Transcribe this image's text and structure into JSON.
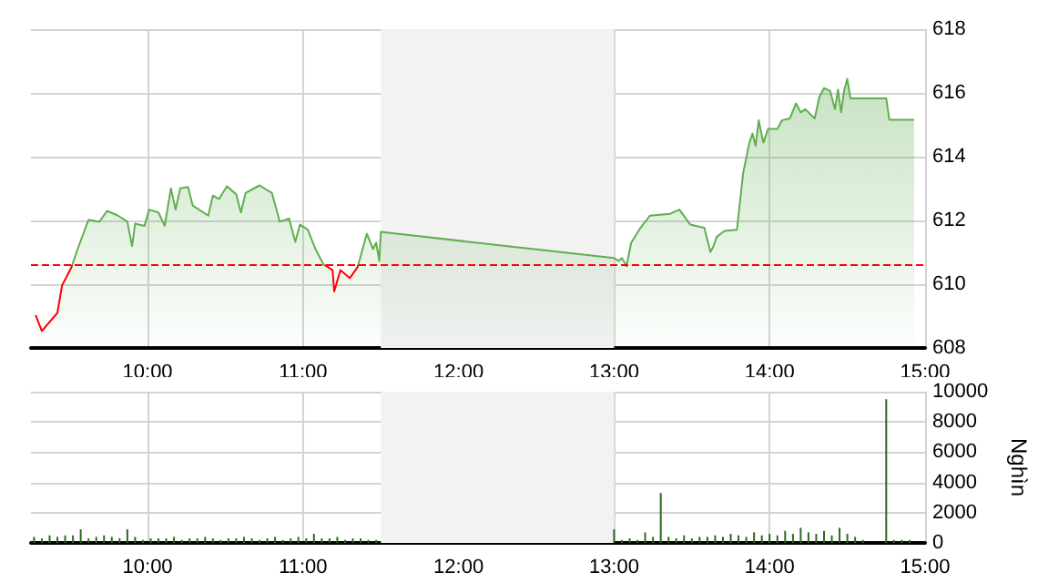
{
  "chart_data": [
    {
      "type": "area",
      "xlim": [
        9.25,
        15
      ],
      "xticks": [
        {
          "value": 10,
          "label": "10:00"
        },
        {
          "value": 11,
          "label": "11:00"
        },
        {
          "value": 12,
          "label": "12:00"
        },
        {
          "value": 13,
          "label": "13:00"
        },
        {
          "value": 14,
          "label": "14:00"
        },
        {
          "value": 15,
          "label": "15:00"
        }
      ],
      "ylim": [
        608,
        618
      ],
      "yticks": [
        608,
        610,
        612,
        614,
        616,
        618
      ],
      "grid": true,
      "marker": "none",
      "line_style": "solid",
      "x": [
        9.28,
        9.32,
        9.42,
        9.45,
        9.51,
        9.55,
        9.62,
        9.69,
        9.74,
        9.81,
        9.87,
        9.9,
        9.92,
        9.98,
        10.01,
        10.07,
        10.11,
        10.15,
        10.18,
        10.21,
        10.26,
        10.29,
        10.39,
        10.42,
        10.46,
        10.51,
        10.57,
        10.6,
        10.63,
        10.72,
        10.8,
        10.85,
        10.91,
        10.95,
        10.98,
        11.03,
        11.08,
        11.13,
        11.19,
        11.2,
        11.24,
        11.3,
        11.35,
        11.41,
        11.45,
        11.47,
        11.49,
        11.5,
        13.0,
        13.03,
        13.05,
        13.08,
        13.11,
        13.17,
        13.23,
        13.36,
        13.42,
        13.49,
        13.58,
        13.62,
        13.64,
        13.66,
        13.71,
        13.79,
        13.83,
        13.87,
        13.89,
        13.91,
        13.93,
        13.96,
        13.99,
        14.05,
        14.08,
        14.13,
        14.17,
        14.2,
        14.23,
        14.29,
        14.32,
        14.35,
        14.39,
        14.42,
        14.44,
        14.46,
        14.48,
        14.5,
        14.52,
        14.75,
        14.77,
        14.93
      ],
      "series": [
        {
          "color": "#5fae4f",
          "values": [
            609.03,
            608.53,
            609.1,
            609.96,
            610.53,
            611.1,
            612.02,
            611.96,
            612.3,
            612.15,
            611.96,
            611.2,
            611.9,
            611.83,
            612.34,
            612.25,
            611.83,
            613.01,
            612.34,
            613.01,
            613.05,
            612.47,
            612.15,
            612.78,
            612.67,
            613.07,
            612.82,
            612.25,
            612.86,
            613.1,
            612.86,
            611.96,
            612.06,
            611.33,
            611.87,
            611.71,
            611.1,
            610.63,
            610.44,
            609.77,
            610.44,
            610.19,
            610.53,
            611.58,
            611.1,
            611.3,
            610.73,
            611.64,
            610.82,
            610.73,
            610.82,
            610.57,
            611.3,
            611.77,
            612.15,
            612.21,
            612.34,
            611.87,
            611.77,
            611.01,
            611.2,
            611.49,
            611.67,
            611.71,
            613.49,
            614.44,
            614.73,
            614.34,
            615.14,
            614.44,
            614.87,
            614.87,
            615.14,
            615.2,
            615.67,
            615.39,
            615.49,
            615.2,
            615.87,
            616.15,
            616.06,
            615.49,
            616.1,
            615.39,
            616.1,
            616.44,
            615.83,
            615.83,
            615.16,
            615.16
          ]
        }
      ],
      "ref_lines": [
        {
          "axis": "y",
          "value": 610.6,
          "color": "#ff0000",
          "line_style": "dashed"
        }
      ],
      "bands": [
        {
          "axis": "x",
          "from": 11.5,
          "to": 13,
          "color": "#f2f2f2"
        }
      ]
    },
    {
      "type": "bar",
      "xlim": [
        9.25,
        15
      ],
      "xticks": [
        {
          "value": 10,
          "label": "10:00"
        },
        {
          "value": 11,
          "label": "11:00"
        },
        {
          "value": 12,
          "label": "12:00"
        },
        {
          "value": 13,
          "label": "13:00"
        },
        {
          "value": 14,
          "label": "14:00"
        },
        {
          "value": 15,
          "label": "15:00"
        }
      ],
      "ylim": [
        0,
        10000
      ],
      "yticks": [
        0,
        2000,
        4000,
        6000,
        8000,
        10000
      ],
      "y2label": "Nghìn",
      "grid": true,
      "x": [
        9.27,
        9.32,
        9.37,
        9.42,
        9.47,
        9.52,
        9.57,
        9.62,
        9.67,
        9.72,
        9.77,
        9.82,
        9.87,
        9.92,
        9.97,
        10.02,
        10.07,
        10.12,
        10.17,
        10.22,
        10.27,
        10.32,
        10.37,
        10.42,
        10.47,
        10.52,
        10.57,
        10.62,
        10.67,
        10.72,
        10.77,
        10.82,
        10.87,
        10.92,
        10.97,
        11.02,
        11.07,
        11.12,
        11.17,
        11.22,
        11.27,
        11.32,
        11.37,
        11.42,
        11.47,
        13.0,
        13.05,
        13.1,
        13.15,
        13.2,
        13.25,
        13.3,
        13.35,
        13.4,
        13.45,
        13.5,
        13.55,
        13.6,
        13.65,
        13.7,
        13.75,
        13.8,
        13.85,
        13.9,
        13.95,
        14.0,
        14.05,
        14.1,
        14.15,
        14.2,
        14.25,
        14.3,
        14.35,
        14.4,
        14.45,
        14.5,
        14.55,
        14.6,
        14.65,
        14.7,
        14.75,
        14.8,
        14.85,
        14.9
      ],
      "series": [
        {
          "color": "#2d6a1e",
          "values": [
            400,
            300,
            500,
            400,
            500,
            500,
            900,
            300,
            400,
            500,
            400,
            300,
            900,
            400,
            200,
            300,
            300,
            300,
            400,
            200,
            300,
            300,
            400,
            300,
            200,
            300,
            300,
            400,
            300,
            200,
            300,
            400,
            200,
            300,
            400,
            300,
            600,
            300,
            300,
            400,
            200,
            300,
            300,
            200,
            200,
            900,
            200,
            300,
            200,
            700,
            400,
            3300,
            400,
            300,
            500,
            300,
            400,
            400,
            500,
            400,
            600,
            500,
            400,
            700,
            500,
            600,
            500,
            800,
            600,
            1000,
            700,
            600,
            800,
            500,
            1000,
            600,
            400,
            200,
            null,
            null,
            9500,
            200,
            200,
            200
          ]
        }
      ],
      "bands": [
        {
          "axis": "x",
          "from": 11.5,
          "to": 13,
          "color": "#f2f2f2"
        }
      ]
    }
  ]
}
